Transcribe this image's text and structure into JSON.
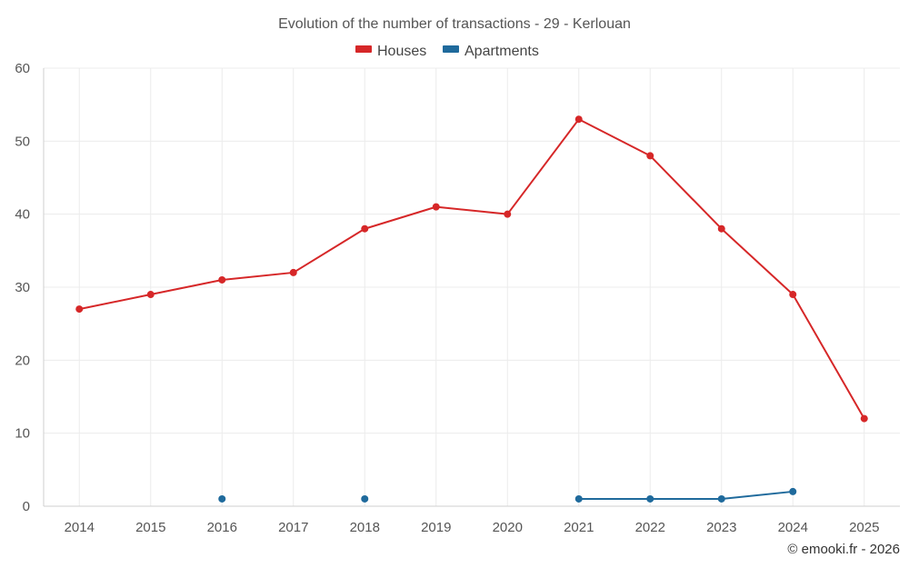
{
  "chart_data": {
    "type": "line",
    "title": "Evolution of the number of transactions - 29 - Kerlouan",
    "xlabel": "",
    "ylabel": "",
    "categories": [
      "2014",
      "2015",
      "2016",
      "2017",
      "2018",
      "2019",
      "2020",
      "2021",
      "2022",
      "2023",
      "2024",
      "2025"
    ],
    "ylim": [
      0,
      60
    ],
    "yticks": [
      0,
      10,
      20,
      30,
      40,
      50,
      60
    ],
    "grid": true,
    "legend_position": "top-center",
    "series": [
      {
        "name": "Houses",
        "color": "#d62728",
        "values": [
          27,
          29,
          31,
          32,
          38,
          41,
          40,
          53,
          48,
          38,
          29,
          12
        ]
      },
      {
        "name": "Apartments",
        "color": "#1f6a9c",
        "values": [
          null,
          null,
          1,
          null,
          1,
          null,
          null,
          1,
          1,
          1,
          2,
          null
        ]
      }
    ]
  },
  "credit": "© emooki.fr - 2026"
}
